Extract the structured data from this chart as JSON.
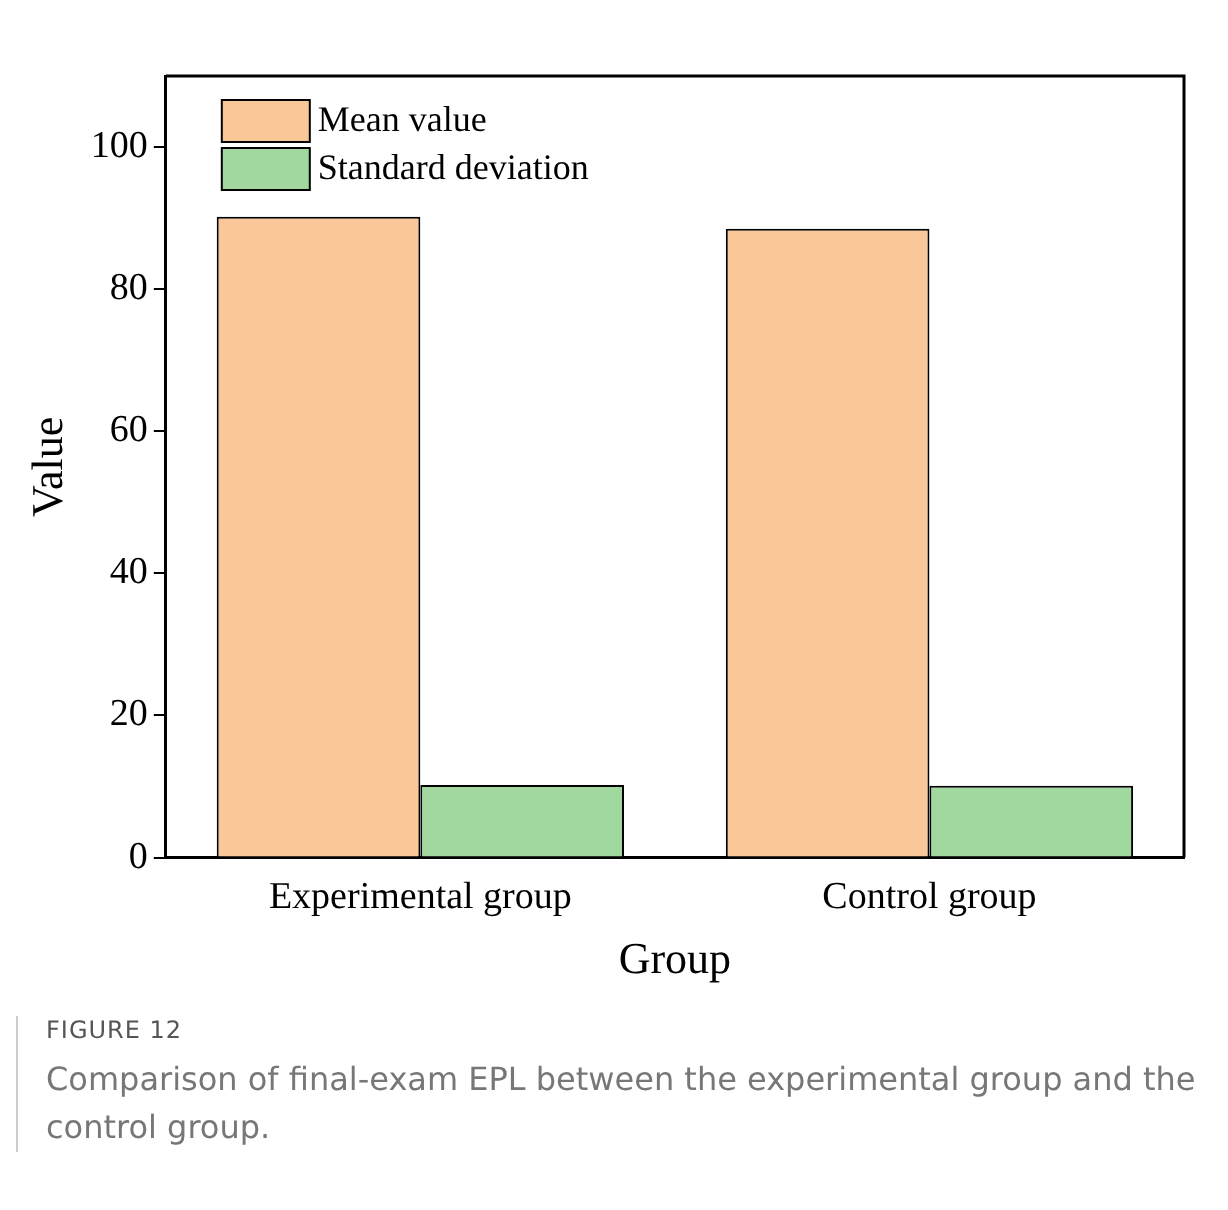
{
  "chart_data": {
    "type": "bar",
    "xlabel": "Group",
    "ylabel": "Value",
    "categories": [
      "Experimental group",
      "Control group"
    ],
    "series": [
      {
        "name": "Mean value",
        "color": "#fac898",
        "values": [
          90.2,
          88.5
        ]
      },
      {
        "name": "Standard deviation",
        "color": "#a0d8a0",
        "values": [
          10.2,
          10.1
        ]
      }
    ],
    "ylim": [
      0,
      110
    ],
    "yticks": [
      0,
      20,
      40,
      60,
      80,
      100
    ],
    "legend": "top left",
    "grid": false,
    "annotations": [
      "FIGURE 12",
      "Comparison of final-exam EPL between the experimental group and the control group."
    ]
  }
}
